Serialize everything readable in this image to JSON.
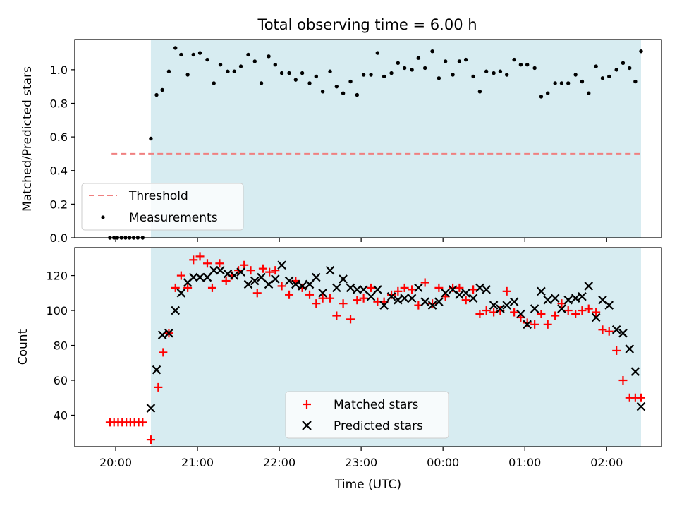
{
  "figure": {
    "title": "Total observing time = 6.00 h"
  },
  "chart_data": [
    {
      "type": "scatter",
      "panel": "top",
      "ylabel": "Matched/Predicted stars",
      "xlabel": "",
      "ylim": [
        0,
        1.18
      ],
      "yticks": [
        "0.0",
        "0.2",
        "0.4",
        "0.6",
        "0.8",
        "1.0"
      ],
      "grid": false,
      "legend_position": "lower-left",
      "shaded_span_hours": [
        20.43,
        26.42
      ],
      "shaded_color": "#d3eaf0",
      "threshold": {
        "name": "Threshold",
        "value": 0.5,
        "x_range": [
          19.95,
          26.42
        ],
        "color": "#f08080",
        "style": "dashed"
      },
      "series": [
        {
          "name": "Measurements",
          "color": "#000000",
          "marker": "dot",
          "x": [
            19.93,
            19.98,
            20.02,
            20.07,
            20.12,
            20.17,
            20.22,
            20.27,
            20.33,
            20.43,
            20.5,
            20.57,
            20.65,
            20.73,
            20.8,
            20.88,
            20.95,
            21.03,
            21.12,
            21.2,
            21.28,
            21.37,
            21.45,
            21.53,
            21.62,
            21.7,
            21.78,
            21.87,
            21.95,
            22.03,
            22.12,
            22.2,
            22.28,
            22.37,
            22.45,
            22.53,
            22.62,
            22.7,
            22.78,
            22.87,
            22.95,
            23.03,
            23.12,
            23.2,
            23.28,
            23.37,
            23.45,
            23.53,
            23.62,
            23.7,
            23.78,
            23.87,
            23.95,
            24.03,
            24.12,
            24.2,
            24.28,
            24.37,
            24.45,
            24.53,
            24.62,
            24.7,
            24.78,
            24.87,
            24.95,
            25.03,
            25.12,
            25.2,
            25.28,
            25.37,
            25.45,
            25.53,
            25.62,
            25.7,
            25.78,
            25.87,
            25.95,
            26.03,
            26.12,
            26.2,
            26.28,
            26.35,
            26.42
          ],
          "y": [
            0.0,
            0.0,
            0.0,
            0.0,
            0.0,
            0.0,
            0.0,
            0.0,
            0.0,
            0.59,
            0.85,
            0.88,
            0.99,
            1.13,
            1.09,
            0.97,
            1.09,
            1.1,
            1.06,
            0.92,
            1.03,
            0.99,
            0.99,
            1.02,
            1.09,
            1.05,
            0.92,
            1.08,
            1.03,
            0.98,
            0.98,
            0.94,
            0.98,
            0.92,
            0.96,
            0.87,
            0.99,
            0.9,
            0.86,
            0.93,
            0.85,
            0.97,
            0.97,
            1.1,
            0.96,
            0.98,
            1.04,
            1.01,
            1.0,
            1.07,
            1.01,
            1.11,
            0.95,
            1.05,
            0.97,
            1.05,
            1.06,
            0.96,
            0.87,
            0.99,
            0.98,
            0.99,
            0.97,
            1.06,
            1.03,
            1.03,
            1.01,
            0.84,
            0.86,
            0.92,
            0.92,
            0.92,
            0.97,
            0.93,
            0.86,
            1.02,
            0.95,
            0.96,
            1.0,
            1.04,
            1.01,
            0.93,
            1.11
          ]
        }
      ]
    },
    {
      "type": "scatter",
      "panel": "bottom",
      "ylabel": "Count",
      "xlabel": "Time (UTC)",
      "ylim": [
        22,
        136
      ],
      "yticks": [
        "40",
        "60",
        "80",
        "100",
        "120"
      ],
      "xlim": [
        19.5,
        26.67
      ],
      "xtick_hours": [
        20,
        21,
        22,
        23,
        24,
        25,
        26
      ],
      "xticks": [
        "20:00",
        "21:00",
        "22:00",
        "23:00",
        "00:00",
        "01:00",
        "02:00"
      ],
      "grid": false,
      "legend_position": "lower-center",
      "shaded_span_hours": [
        20.43,
        26.42
      ],
      "shaded_color": "#d3eaf0",
      "series": [
        {
          "name": "Matched stars",
          "color": "#ff0000",
          "marker": "plus",
          "x": [
            19.93,
            19.98,
            20.03,
            20.08,
            20.13,
            20.18,
            20.23,
            20.28,
            20.33,
            20.43,
            20.52,
            20.58,
            20.65,
            20.73,
            20.8,
            20.88,
            20.95,
            21.03,
            21.12,
            21.18,
            21.27,
            21.35,
            21.42,
            21.5,
            21.57,
            21.65,
            21.73,
            21.8,
            21.88,
            21.95,
            22.03,
            22.12,
            22.2,
            22.28,
            22.37,
            22.45,
            22.53,
            22.62,
            22.7,
            22.78,
            22.87,
            22.95,
            23.03,
            23.12,
            23.2,
            23.28,
            23.37,
            23.45,
            23.53,
            23.62,
            23.7,
            23.78,
            23.87,
            23.95,
            24.03,
            24.12,
            24.2,
            24.28,
            24.37,
            24.45,
            24.53,
            24.62,
            24.7,
            24.78,
            24.87,
            24.95,
            25.03,
            25.12,
            25.2,
            25.28,
            25.37,
            25.45,
            25.53,
            25.62,
            25.7,
            25.78,
            25.87,
            25.95,
            26.03,
            26.12,
            26.2,
            26.28,
            26.35,
            26.42
          ],
          "y": [
            36,
            36,
            36,
            36,
            36,
            36,
            36,
            36,
            36,
            26,
            56,
            76,
            87,
            113,
            120,
            113,
            129,
            131,
            127,
            113,
            127,
            117,
            120,
            123,
            126,
            123,
            110,
            124,
            122,
            123,
            114,
            109,
            117,
            113,
            109,
            104,
            107,
            107,
            97,
            104,
            95,
            106,
            107,
            113,
            105,
            105,
            109,
            111,
            113,
            112,
            103,
            116,
            104,
            113,
            108,
            113,
            113,
            106,
            112,
            98,
            100,
            99,
            100,
            111,
            99,
            96,
            93,
            92,
            98,
            92,
            97,
            104,
            100,
            98,
            100,
            101,
            99,
            89,
            88,
            77,
            60,
            50,
            50,
            50
          ]
        },
        {
          "name": "Predicted stars",
          "color": "#000000",
          "marker": "x",
          "x": [
            20.43,
            20.5,
            20.57,
            20.65,
            20.73,
            20.8,
            20.88,
            20.95,
            21.03,
            21.12,
            21.2,
            21.28,
            21.37,
            21.45,
            21.53,
            21.62,
            21.7,
            21.78,
            21.87,
            21.95,
            22.03,
            22.12,
            22.2,
            22.28,
            22.37,
            22.45,
            22.53,
            22.62,
            22.7,
            22.78,
            22.87,
            22.95,
            23.03,
            23.12,
            23.2,
            23.28,
            23.37,
            23.45,
            23.53,
            23.62,
            23.7,
            23.78,
            23.87,
            23.95,
            24.03,
            24.12,
            24.2,
            24.28,
            24.37,
            24.45,
            24.53,
            24.62,
            24.7,
            24.78,
            24.87,
            24.95,
            25.03,
            25.12,
            25.2,
            25.28,
            25.37,
            25.45,
            25.53,
            25.62,
            25.7,
            25.78,
            25.87,
            25.95,
            26.03,
            26.12,
            26.2,
            26.28,
            26.35,
            26.42
          ],
          "y": [
            44,
            66,
            86,
            87,
            100,
            110,
            116,
            119,
            119,
            119,
            123,
            123,
            121,
            120,
            122,
            115,
            117,
            119,
            115,
            118,
            126,
            117,
            115,
            114,
            115,
            119,
            110,
            123,
            113,
            118,
            113,
            112,
            112,
            108,
            112,
            103,
            108,
            106,
            107,
            107,
            113,
            105,
            103,
            105,
            110,
            112,
            109,
            110,
            107,
            113,
            112,
            103,
            101,
            103,
            105,
            98,
            92,
            101,
            111,
            106,
            107,
            101,
            106,
            107,
            108,
            114,
            96,
            106,
            103,
            89,
            87,
            78,
            65,
            45
          ]
        }
      ]
    }
  ]
}
